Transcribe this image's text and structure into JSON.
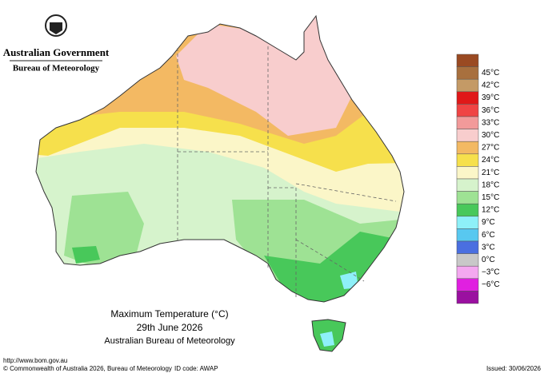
{
  "header": {
    "government": "Australian Government",
    "bureau": "Bureau of Meteorology"
  },
  "map": {
    "title": "Maximum Temperature (°C)",
    "date": "29th June 2026",
    "agency": "Australian Bureau of Meteorology"
  },
  "legend": {
    "labels": [
      "45°C",
      "42°C",
      "39°C",
      "36°C",
      "33°C",
      "30°C",
      "27°C",
      "24°C",
      "21°C",
      "18°C",
      "15°C",
      "12°C",
      "9°C",
      "6°C",
      "3°C",
      "0°C",
      "−3°C",
      "−6°C"
    ],
    "colors": [
      "#9a4a22",
      "#a8703e",
      "#c49a66",
      "#e01818",
      "#f04444",
      "#f29a9a",
      "#f8cdcd",
      "#f3b963",
      "#f6e04c",
      "#fbf6c8",
      "#d6f3cc",
      "#9ee294",
      "#48c85a",
      "#8ef0f8",
      "#58c8f0",
      "#4a6fe0",
      "#c8c8c8",
      "#f4a8f0",
      "#e020e0",
      "#9a10a0"
    ]
  },
  "footer": {
    "url": "http://www.bom.gov.au",
    "copyright": "© Commonwealth of Australia 2026, Bureau of Meteorology",
    "id_code": "ID code: AWAP",
    "issued": "Issued: 30/06/2026"
  }
}
